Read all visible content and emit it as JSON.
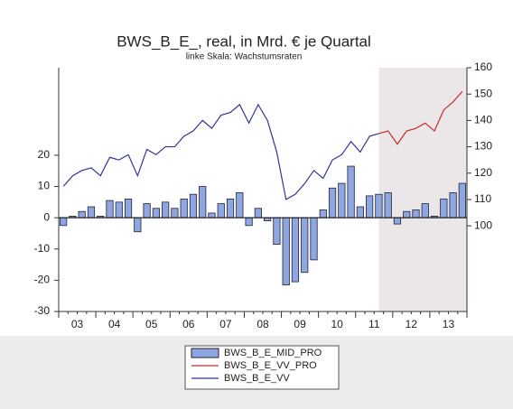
{
  "chart_data": {
    "type": "combo",
    "title": "BWS_B_E_, real, in Mrd. € je Quartal",
    "subtitle": "linke Skala: Wachstumsraten",
    "categories": [
      null,
      null,
      null,
      null,
      null,
      null,
      null,
      null,
      null,
      null,
      null,
      null,
      null,
      null,
      null,
      null,
      null,
      null,
      null,
      null,
      null,
      null,
      null,
      null,
      null,
      null,
      null,
      null,
      null,
      null,
      null,
      null,
      null,
      null,
      null,
      null,
      null,
      null,
      null,
      null,
      null,
      null,
      null,
      null
    ],
    "x_labels": [
      "03",
      "04",
      "05",
      "06",
      "07",
      "08",
      "09",
      "10",
      "11",
      "12",
      "13"
    ],
    "ylim": [
      -30,
      48
    ],
    "yticks": [
      -30,
      -20,
      -10,
      0,
      10,
      20
    ],
    "y2lim": [
      67.5,
      160
    ],
    "y2ticks": [
      100,
      110,
      120,
      130,
      140,
      150,
      160
    ],
    "series": [
      {
        "name": "BWS_B_E_MID_PRO",
        "type": "bar",
        "color": "#8ea7e2",
        "values": [
          -2.5,
          0.5,
          2,
          3.5,
          0.5,
          5.5,
          5,
          6,
          -4.5,
          4.5,
          3,
          5,
          3,
          6,
          7.5,
          10,
          1.5,
          4.5,
          6,
          8,
          -2.5,
          3,
          -1,
          -8.5,
          -21.5,
          -20.5,
          -17.5,
          -13.5,
          2.5,
          9.5,
          11,
          16.5,
          3.5,
          7,
          7.5,
          8,
          -2,
          2,
          2.5,
          4.5,
          0.5,
          6,
          8,
          11
        ]
      },
      {
        "name": "BWS_B_E_VV_PRO",
        "type": "line",
        "axis": "y2",
        "color": "#cc2a2a",
        "values": [
          null,
          null,
          null,
          null,
          null,
          null,
          null,
          null,
          null,
          null,
          null,
          null,
          null,
          null,
          null,
          null,
          null,
          null,
          null,
          null,
          null,
          null,
          null,
          null,
          null,
          null,
          null,
          null,
          null,
          null,
          null,
          null,
          null,
          null,
          135,
          136,
          131,
          136,
          137,
          139,
          136,
          144,
          147,
          151
        ]
      },
      {
        "name": "BWS_B_E_VV",
        "type": "line",
        "axis": "y2",
        "color": "#33339a",
        "values": [
          115,
          119,
          121,
          122,
          119,
          126,
          125,
          127,
          119,
          129,
          127,
          130,
          130,
          134,
          136,
          140,
          137,
          142,
          143,
          146,
          139,
          146,
          140,
          128,
          110,
          112,
          116,
          121,
          118,
          125,
          127,
          132,
          128,
          134,
          135,
          null,
          null,
          null,
          null,
          null,
          null,
          null,
          null,
          null
        ]
      }
    ]
  }
}
